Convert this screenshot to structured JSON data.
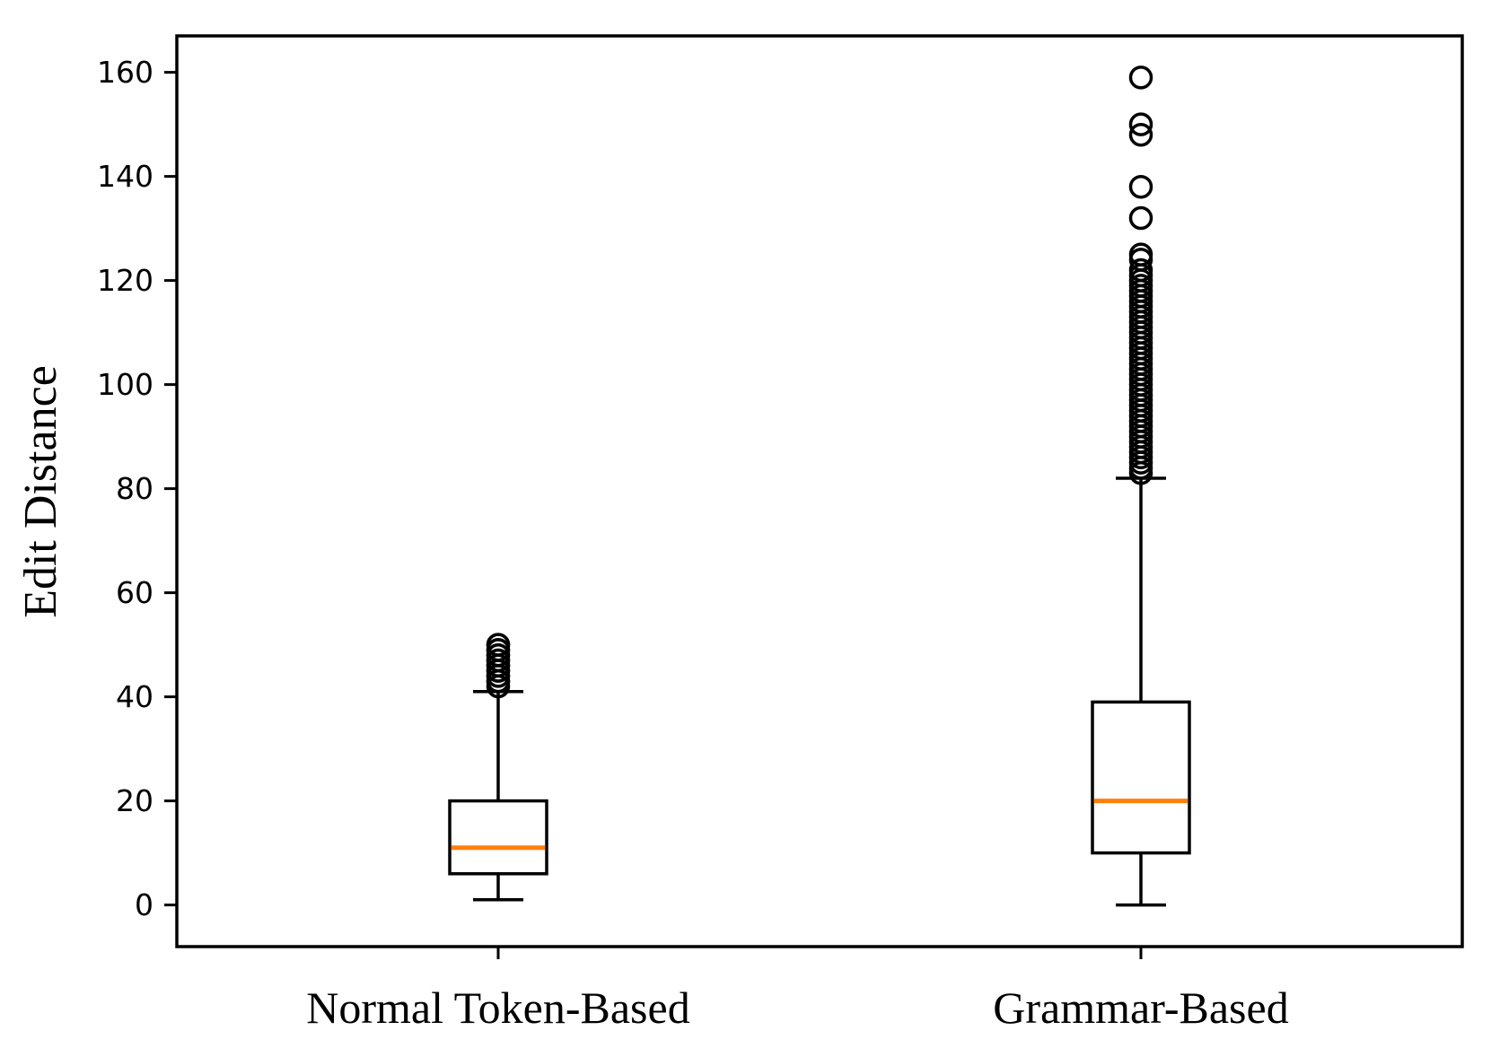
{
  "figure": {
    "background": "#ffffff",
    "line_color": "#000000",
    "text_color": "#000000"
  },
  "chart_data": {
    "type": "boxplot",
    "title": "",
    "xlabel": "",
    "ylabel": "Edit Distance",
    "categories": [
      "Normal Token-Based",
      "Grammar-Based"
    ],
    "yticks": [
      0,
      20,
      40,
      60,
      80,
      100,
      120,
      140,
      160
    ],
    "ylim": [
      -8,
      167
    ],
    "grid": false,
    "legend": "none",
    "median_color": "#ff7f0e",
    "box_color": "#000000",
    "series": [
      {
        "name": "Normal Token-Based",
        "whisker_low": 1,
        "q1": 6,
        "median": 11,
        "q3": 20,
        "whisker_high": 41,
        "outliers": [
          42,
          43,
          43,
          44,
          44,
          45,
          45,
          46,
          46,
          47,
          47,
          48,
          48,
          49,
          49,
          50,
          50
        ]
      },
      {
        "name": "Grammar-Based",
        "whisker_low": 0,
        "q1": 10,
        "median": 20,
        "q3": 39,
        "whisker_high": 82,
        "outliers": [
          83,
          84,
          85,
          86,
          87,
          88,
          89,
          90,
          91,
          92,
          93,
          94,
          95,
          96,
          97,
          98,
          99,
          100,
          101,
          102,
          103,
          104,
          105,
          106,
          107,
          108,
          109,
          110,
          111,
          112,
          113,
          114,
          115,
          116,
          117,
          118,
          119,
          120,
          121,
          122,
          124,
          125,
          132,
          138,
          148,
          150,
          159
        ]
      }
    ]
  }
}
